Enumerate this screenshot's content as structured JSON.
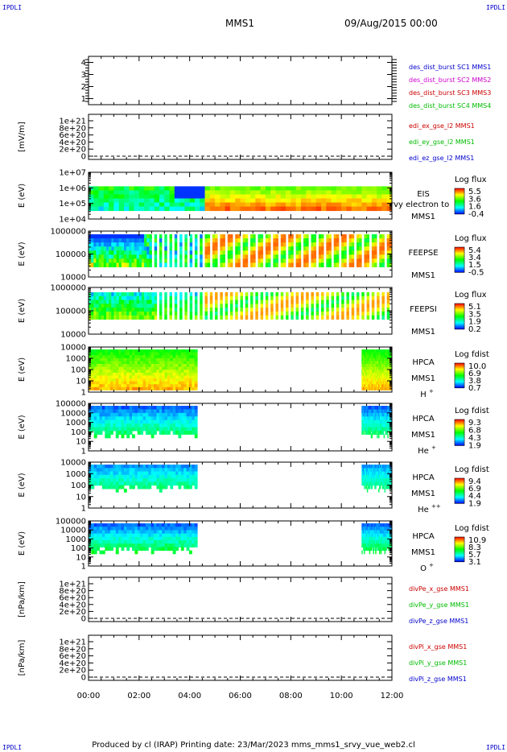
{
  "corners": {
    "tl": "IPDLI",
    "tr": "IPDLI",
    "bl": "IPDLI",
    "br": "IPDLI"
  },
  "header": {
    "spacecraft": "MMS1",
    "date": "09/Aug/2015 00:00"
  },
  "footer": "Produced by cl (IRAP)   Printing date: 23/Mar/2023   mms_mms1_srvy_vue_web2.cl",
  "colors": {
    "blue": "#0000cc",
    "magenta": "#cc00cc",
    "red": "#cc0000",
    "green": "#00bb00",
    "black": "#000000"
  },
  "chart_data": [
    {
      "type": "line",
      "ylabel": "",
      "yticks": [
        "1",
        "2",
        "3",
        "4"
      ],
      "ylim": [
        0.5,
        4.5
      ],
      "legend": [
        {
          "name": "des_dist_burst SC1 MMS1",
          "color": "blue"
        },
        {
          "name": "des_dist_burst SC2 MMS2",
          "color": "magenta"
        },
        {
          "name": "des_dist_burst SC3 MMS3",
          "color": "red"
        },
        {
          "name": "des_dist_burst SC4 MMS4",
          "color": "green"
        }
      ]
    },
    {
      "type": "line",
      "ylabel": "[mV/m]",
      "yticks": [
        "0",
        "2e+20",
        "4e+20",
        "6e+20",
        "8e+20",
        "1e+21"
      ],
      "ylim": [
        0,
        1.1e+21
      ],
      "zero_line": true,
      "legend": [
        {
          "name": "edi_ex_gse_l2 MMS1",
          "color": "red"
        },
        {
          "name": "edi_ey_gse_l2 MMS1",
          "color": "green"
        },
        {
          "name": "edi_ez_gse_l2 MMS1",
          "color": "blue"
        }
      ]
    },
    {
      "type": "heatmap",
      "ylabel": "E (eV)",
      "yticks": [
        "1e+04",
        "1e+05",
        "1e+06",
        "1e+07"
      ],
      "ylog": true,
      "ylim": [
        10000.0,
        10000000.0
      ],
      "labels": [
        "EIS",
        "MMS1"
      ],
      "overlay": "rvy electron to",
      "cbar_title": "Log flux",
      "cbar_ticks": [
        "5.5",
        "3.6",
        "1.6",
        "-0.4"
      ]
    },
    {
      "type": "heatmap",
      "ylabel": "E (eV)",
      "yticks": [
        "10000",
        "100000",
        "1000000"
      ],
      "ylog": true,
      "ylim": [
        10000.0,
        1000000.0
      ],
      "labels": [
        "FEEPSE",
        "MMS1"
      ],
      "cbar_title": "Log flux",
      "cbar_ticks": [
        "5.4",
        "3.4",
        "1.5",
        "-0.5"
      ]
    },
    {
      "type": "heatmap",
      "ylabel": "E (eV)",
      "yticks": [
        "10000",
        "100000",
        "1000000"
      ],
      "ylog": true,
      "ylim": [
        10000.0,
        1000000.0
      ],
      "labels": [
        "FEEPSI",
        "MMS1"
      ],
      "cbar_title": "Log flux",
      "cbar_ticks": [
        "5.1",
        "3.5",
        "1.9",
        "0.2"
      ]
    },
    {
      "type": "heatmap",
      "ylabel": "E (eV)",
      "yticks": [
        "1",
        "10",
        "100",
        "1000",
        "10000"
      ],
      "ylog": true,
      "ylim": [
        1,
        10000.0
      ],
      "labels": [
        "HPCA",
        "MMS1",
        "H+"
      ],
      "cbar_title": "Log fdist",
      "cbar_ticks": [
        "10.0",
        "6.9",
        "3.8",
        "0.7"
      ]
    },
    {
      "type": "heatmap",
      "ylabel": "E (eV)",
      "yticks": [
        "1",
        "10",
        "100",
        "1000",
        "10000",
        "100000"
      ],
      "ylog": true,
      "ylim": [
        1,
        100000.0
      ],
      "labels": [
        "HPCA",
        "MMS1",
        "He+"
      ],
      "cbar_title": "Log fdist",
      "cbar_ticks": [
        "9.3",
        "6.8",
        "4.3",
        "1.9"
      ]
    },
    {
      "type": "heatmap",
      "ylabel": "E (eV)",
      "yticks": [
        "1",
        "10",
        "100",
        "1000",
        "10000"
      ],
      "ylog": true,
      "ylim": [
        1,
        10000.0
      ],
      "labels": [
        "HPCA",
        "MMS1",
        "He++"
      ],
      "cbar_title": "Log fdist",
      "cbar_ticks": [
        "9.4",
        "6.9",
        "4.4",
        "1.9"
      ]
    },
    {
      "type": "heatmap",
      "ylabel": "E (eV)",
      "yticks": [
        "1",
        "10",
        "100",
        "1000",
        "10000",
        "100000"
      ],
      "ylog": true,
      "ylim": [
        1,
        100000.0
      ],
      "labels": [
        "HPCA",
        "MMS1",
        "O+"
      ],
      "cbar_title": "Log fdist",
      "cbar_ticks": [
        "10.9",
        "8.3",
        "5.7",
        "3.1"
      ]
    },
    {
      "type": "line",
      "ylabel": "[nPa/km]",
      "yticks": [
        "0",
        "2e+20",
        "4e+20",
        "6e+20",
        "8e+20",
        "1e+21"
      ],
      "ylim": [
        0,
        1.1e+21
      ],
      "zero_line": true,
      "legend": [
        {
          "name": "divPe_x_gse MMS1",
          "color": "red"
        },
        {
          "name": "divPe_y_gse MMS1",
          "color": "green"
        },
        {
          "name": "divPe_z_gse MMS1",
          "color": "blue"
        }
      ]
    },
    {
      "type": "line",
      "ylabel": "[nPa/km]",
      "yticks": [
        "0",
        "2e+20",
        "4e+20",
        "6e+20",
        "8e+20",
        "1e+21"
      ],
      "ylim": [
        0,
        1.1e+21
      ],
      "zero_line": true,
      "legend": [
        {
          "name": "divPi_x_gse MMS1",
          "color": "red"
        },
        {
          "name": "divPi_y_gse MMS1",
          "color": "green"
        },
        {
          "name": "divPi_z_gse MMS1",
          "color": "blue"
        }
      ]
    }
  ],
  "xaxis": {
    "ticks": [
      "00:00",
      "02:00",
      "04:00",
      "06:00",
      "08:00",
      "10:00",
      "12:00"
    ]
  }
}
